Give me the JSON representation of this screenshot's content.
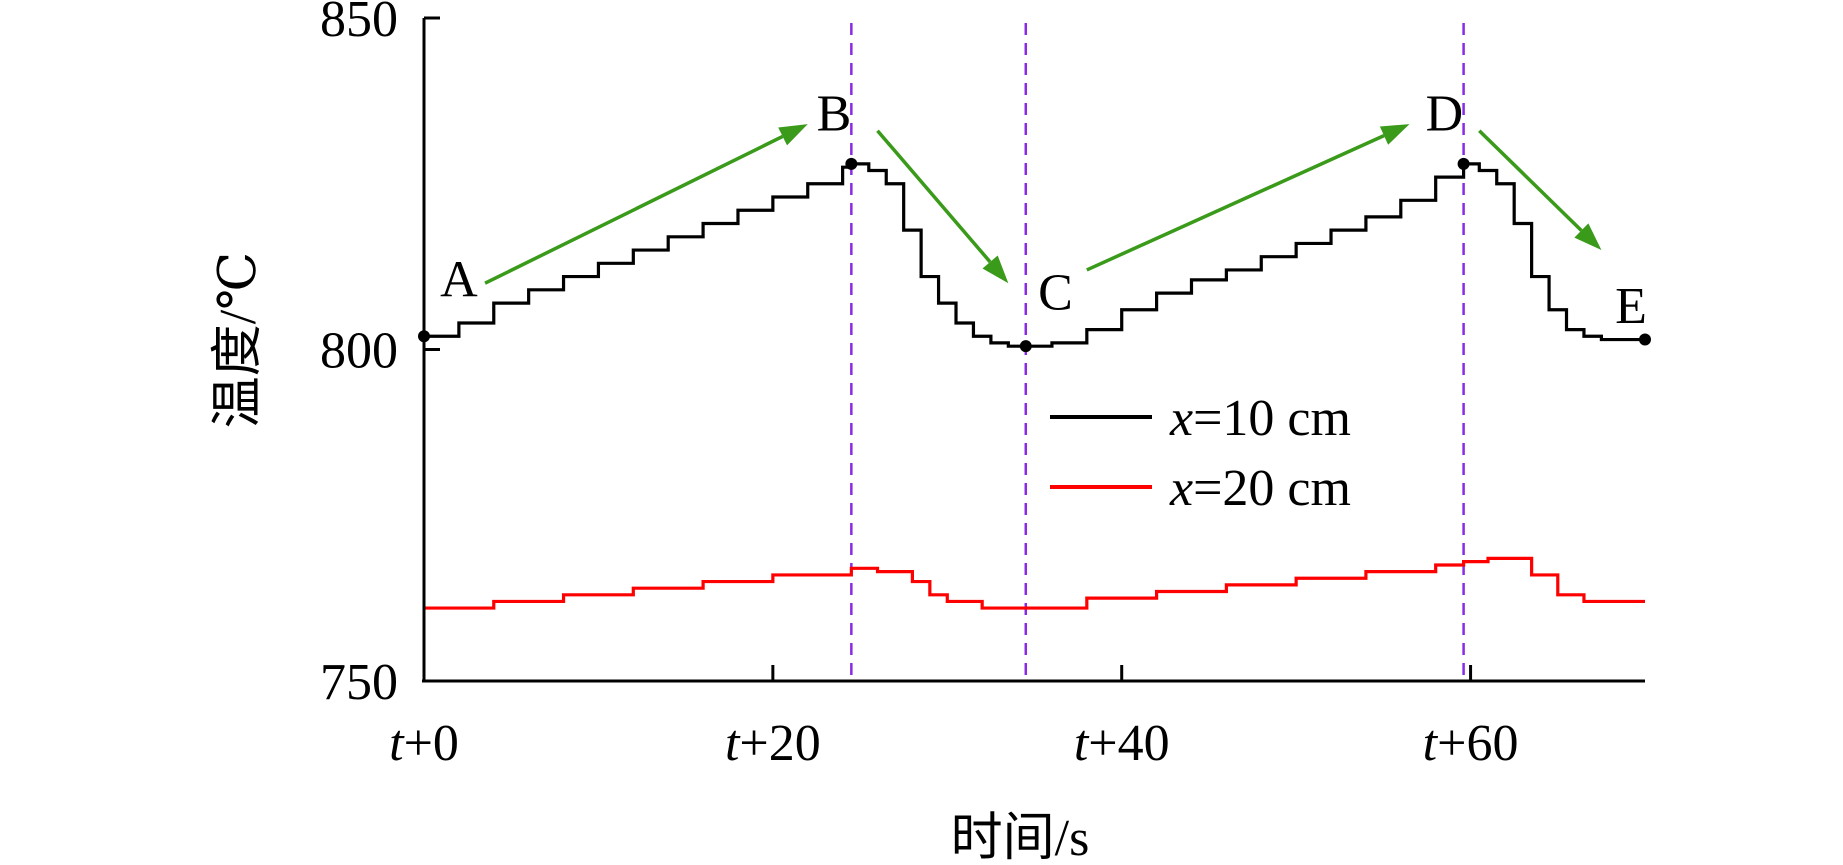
{
  "chart_data": {
    "type": "line",
    "xlabel": "时间/s",
    "ylabel": "温度/℃",
    "xlim": [
      0,
      70
    ],
    "ylim": [
      750,
      850
    ],
    "x_ticks": [
      {
        "value": 0,
        "prefix": "t",
        "suffix": "+0"
      },
      {
        "value": 20,
        "prefix": "t",
        "suffix": "+20"
      },
      {
        "value": 40,
        "prefix": "t",
        "suffix": "+40"
      },
      {
        "value": 60,
        "prefix": "t",
        "suffix": "+60"
      }
    ],
    "y_ticks": [
      750,
      800,
      850
    ],
    "vlines": [
      24.5,
      34.5,
      59.6
    ],
    "series": [
      {
        "name_var": "x",
        "name_rest": "=10 cm",
        "color": "#000000",
        "x": [
          0,
          2,
          4,
          6,
          8,
          10,
          12,
          14,
          16,
          18,
          20,
          22,
          24,
          24.5,
          25.5,
          26.5,
          27.5,
          28.5,
          29.5,
          30.5,
          31.5,
          32.5,
          33.5,
          34.5,
          36,
          38,
          40,
          42,
          44,
          46,
          48,
          50,
          52,
          54,
          56,
          58,
          59.6,
          60.5,
          61.5,
          62.5,
          63.5,
          64.5,
          65.5,
          66.5,
          67.5,
          68.5,
          70
        ],
        "y": [
          802,
          804,
          807,
          809,
          811,
          813,
          815,
          817,
          819,
          821,
          823,
          825,
          827.5,
          828,
          827,
          825,
          818,
          811,
          807,
          804,
          802,
          801,
          800.5,
          800.5,
          801,
          803,
          806,
          808.5,
          810.5,
          812,
          814,
          816,
          818,
          820,
          822.5,
          826,
          828,
          827,
          825,
          819,
          811,
          806,
          803,
          802,
          801.5,
          801.5,
          801.5
        ]
      },
      {
        "name_var": "x",
        "name_rest": "=20 cm",
        "color": "#ff0000",
        "x": [
          0,
          4,
          8,
          12,
          16,
          20,
          24.5,
          26,
          28,
          29,
          30,
          32,
          33.5,
          34.5,
          38,
          42,
          46,
          50,
          54,
          58,
          59.6,
          61,
          62.5,
          63.5,
          65,
          66.5,
          68,
          70
        ],
        "y": [
          761,
          762,
          763,
          764,
          765,
          766,
          767,
          766.5,
          765,
          763,
          762,
          761,
          761,
          761,
          762.5,
          763.5,
          764.5,
          765.5,
          766.5,
          767.5,
          768,
          768.5,
          768.5,
          766,
          763,
          762,
          762,
          762
        ]
      }
    ],
    "markers": [
      {
        "x": 0,
        "y": 802
      },
      {
        "x": 24.5,
        "y": 828
      },
      {
        "x": 34.5,
        "y": 800.5
      },
      {
        "x": 59.6,
        "y": 828
      },
      {
        "x": 70,
        "y": 801.5
      }
    ],
    "point_labels": [
      {
        "text": "A",
        "x": 2,
        "y": 808
      },
      {
        "text": "B",
        "x": 23.5,
        "y": 833
      },
      {
        "text": "C",
        "x": 36.2,
        "y": 806
      },
      {
        "text": "D",
        "x": 58.5,
        "y": 833
      },
      {
        "text": "E",
        "x": 69.2,
        "y": 804
      }
    ],
    "arrows": [
      {
        "from": [
          3.5,
          810
        ],
        "to": [
          22,
          834
        ]
      },
      {
        "from": [
          26,
          833
        ],
        "to": [
          33.5,
          810
        ]
      },
      {
        "from": [
          38,
          812
        ],
        "to": [
          56.5,
          834
        ]
      },
      {
        "from": [
          60.5,
          833
        ],
        "to": [
          67.5,
          815
        ]
      }
    ],
    "arrow_color": "#3a9a1a",
    "vline_color": "#8a2be2",
    "legend_position": "center-right"
  }
}
